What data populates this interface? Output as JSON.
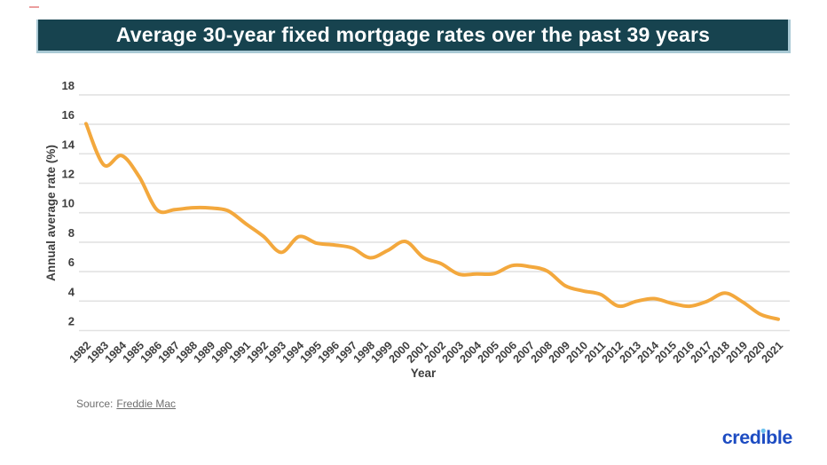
{
  "header": {
    "title": "Average 30-year fixed mortgage rates over the past 39 years",
    "bg_color": "#17434f",
    "border_color": "#a9c9d4",
    "text_color": "#ffffff"
  },
  "chart_data": {
    "type": "line",
    "title": "Average 30-year fixed mortgage rates over the past 39 years",
    "xlabel": "Year",
    "ylabel": "Annual average rate (%)",
    "x": [
      1982,
      1983,
      1984,
      1985,
      1986,
      1987,
      1988,
      1989,
      1990,
      1991,
      1992,
      1993,
      1994,
      1995,
      1996,
      1997,
      1998,
      1999,
      2000,
      2001,
      2002,
      2003,
      2004,
      2005,
      2006,
      2007,
      2008,
      2009,
      2010,
      2011,
      2012,
      2013,
      2014,
      2015,
      2016,
      2017,
      2018,
      2019,
      2020,
      2021
    ],
    "series": [
      {
        "name": "30-year fixed mortgage rate",
        "values": [
          16.04,
          13.24,
          13.88,
          12.43,
          10.19,
          10.21,
          10.34,
          10.32,
          10.13,
          9.25,
          8.39,
          7.31,
          8.38,
          7.93,
          7.81,
          7.6,
          6.94,
          7.44,
          8.05,
          6.97,
          6.54,
          5.83,
          5.84,
          5.87,
          6.41,
          6.34,
          6.03,
          5.04,
          4.69,
          4.45,
          3.66,
          3.98,
          4.17,
          3.85,
          3.65,
          3.99,
          4.54,
          3.94,
          3.1,
          2.77
        ]
      }
    ],
    "ylim": [
      2,
      18
    ],
    "yticks": [
      2,
      4,
      6,
      8,
      10,
      12,
      14,
      16,
      18
    ],
    "grid": true,
    "legend": "none",
    "line_color": "#f3a83d",
    "gridline_color": "#e2e2e2",
    "tick_color": "#3e3e3e"
  },
  "footer": {
    "source_label": "Source:",
    "source_link": "Freddie Mac",
    "logo": {
      "pre": "cred",
      "i_dotless": "ı",
      "post": "ble",
      "text_color": "#1d4cc2",
      "dot_color": "#6cc1ef"
    }
  }
}
